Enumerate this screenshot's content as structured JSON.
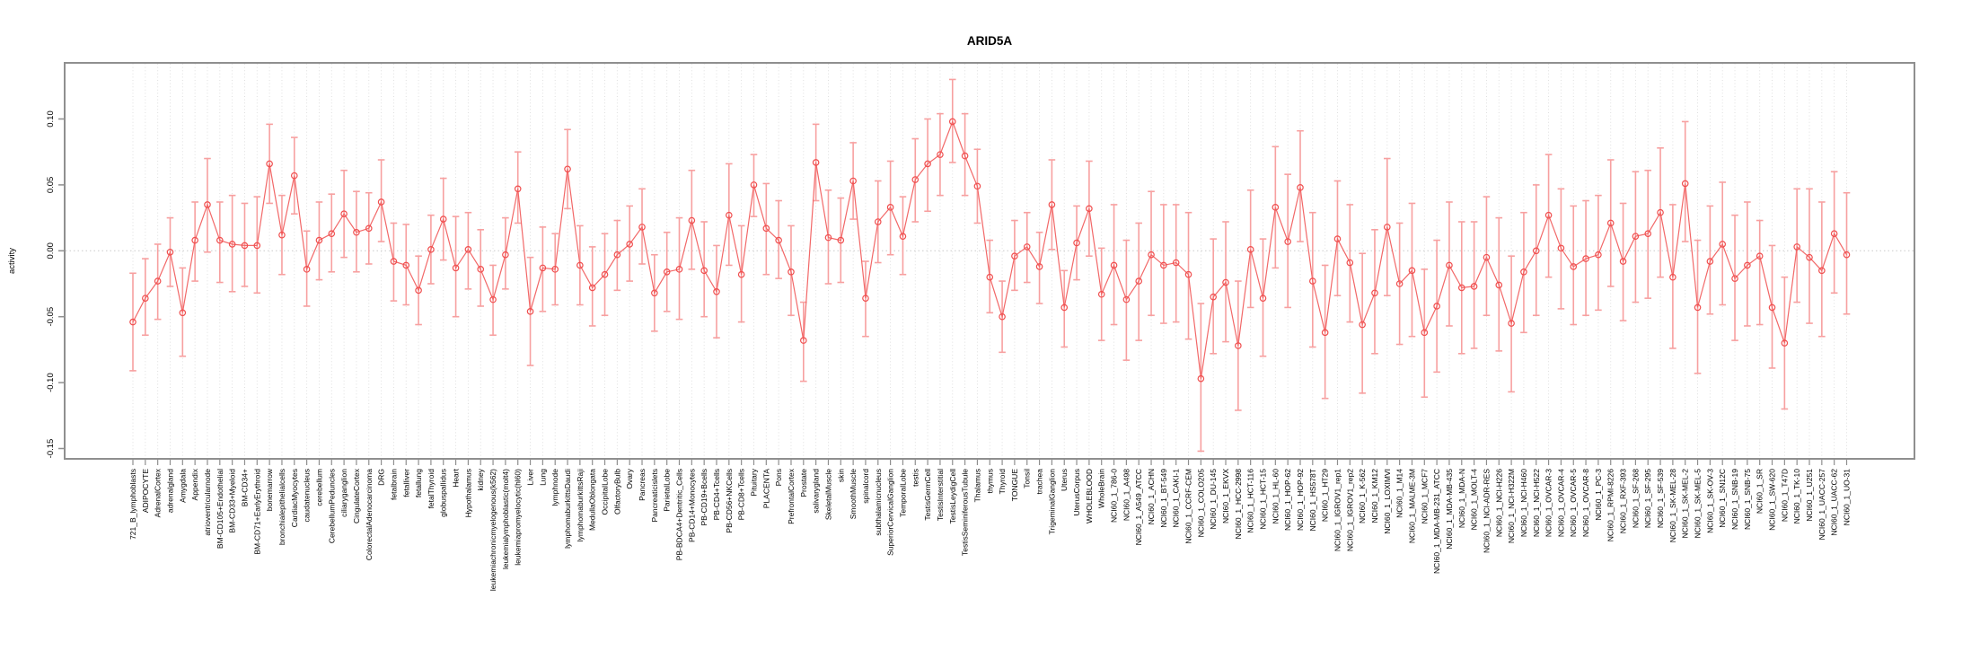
{
  "chart_data": {
    "type": "line",
    "title": "ARID5A",
    "ylabel": "activity",
    "xlabel": "",
    "legend": "none",
    "grid": "vertical dotted per category; dotted horizontal line at 0",
    "ylim": [
      -0.158,
      0.143
    ],
    "yticks": [
      0.1,
      0.05,
      0.0,
      -0.05,
      -0.1,
      -0.15
    ],
    "ytick_labels": [
      "0.10",
      "0.05",
      "0.00",
      "-0.05",
      "-0.10",
      "-0.15"
    ],
    "series_name": "activity with error bars",
    "colors": {
      "point": "#f04f4f",
      "line": "#f26868",
      "error_bar": "#f7a0a0",
      "grid": "#dcdcdc",
      "zero_line": "#c9c9c9",
      "frame": "#8f8f8f",
      "text": "#000000",
      "background": "#ffffff"
    },
    "categories": [
      "721_B_lymphoblasts",
      "ADIPOCYTE",
      "AdrenalCortex",
      "adrenalgland",
      "Amygdala",
      "Appendix",
      "atrioventricularnode",
      "BM-CD105+Endothelial",
      "BM-CD33+Myeloid",
      "BM-CD34+",
      "BM-CD71+EarlyErythroid",
      "bonemarrow",
      "bronchialepithelialcells",
      "CardiacMyocytes",
      "caudatenucleus",
      "cerebellum",
      "CerebellumPeduncles",
      "ciliaryganglion",
      "CingulateCortex",
      "ColorectalAdenocarcinoma",
      "DRG",
      "fetalbrain",
      "fetalliver",
      "fetallung",
      "fetalThyroid",
      "globuspallidus",
      "Heart",
      "Hypothalamus",
      "kidney",
      "leukemiachronicmyelogenous(k562)",
      "leukemialymphoblastic(molt4)",
      "leukemiapromyelocytic(hl60)",
      "Liver",
      "Lung",
      "lymphnode",
      "lymphomaburkittsDaudi",
      "lymphomaburkittsRaji",
      "MedullaOblongata",
      "OccipitalLobe",
      "OlfactoryBulb",
      "Ovary",
      "Pancreas",
      "Pancreaticislets",
      "ParietalLobe",
      "PB-BDCA4+Dentritic_Cells",
      "PB-CD14+Monocytes",
      "PB-CD19+Bcells",
      "PB-CD4+Tcells",
      "PB-CD56+NKCells",
      "PB-CD8+Tcells",
      "Pituitary",
      "PLACENTA",
      "Pons",
      "PrefrontalCortex",
      "Prostate",
      "salivarygland",
      "SkeletalMuscle",
      "skin",
      "SmoothMuscle",
      "spinalcord",
      "subthalamicnucleus",
      "SuperiorCervicalGanglion",
      "TemporalLobe",
      "testis",
      "TestisGermCell",
      "TestisInterstitial",
      "TestisLeydigCell",
      "TestisSeminiferousTubule",
      "Thalamus",
      "thymus",
      "Thyroid",
      "TONGUE",
      "Tonsil",
      "trachea",
      "TrigeminalGanglion",
      "Uterus",
      "UterusCorpus",
      "WHOLEBLOOD",
      "WholeBrain",
      "NCI60_1_786-0",
      "NCI60_1_A498",
      "NCI60_1_A549_ATCC",
      "NCI60_1_ACHN",
      "NCI60_1_BT-549",
      "NCI60_1_CAKI-1",
      "NCI60_1_CCRF-CEM",
      "NCI60_1_COLO205",
      "NCI60_1_DU-145",
      "NCI60_1_EKVX",
      "NCI60_1_HCC-2998",
      "NCI60_1_HCT-116",
      "NCI60_1_HCT-15",
      "NCI60_1_HL-60",
      "NCI60_1_HOP-62",
      "NCI60_1_HOP-92",
      "NCI60_1_HS578T",
      "NCI60_1_HT29",
      "NCI60_1_IGROV1_rep1",
      "NCI60_1_IGROV1_rep2",
      "NCI60_1_K-562",
      "NCI60_1_KM12",
      "NCI60_1_LOXIMVI",
      "NCI60_1_M14",
      "NCI60_1_MALME-3M",
      "NCI60_1_MCF7",
      "NCI60_1_MDA-MB-231_ATCC",
      "NCI60_1_MDA-MB-435",
      "NCI60_1_MDA-N",
      "NCI60_1_MOLT-4",
      "NCI60_1_NCI-ADR-RES",
      "NCI60_1_NCI-H226",
      "NCI60_1_NCI-H322M",
      "NCI60_1_NCI-H460",
      "NCI60_1_NCI-H522",
      "NCI60_1_OVCAR-3",
      "NCI60_1_OVCAR-4",
      "NCI60_1_OVCAR-5",
      "NCI60_1_OVCAR-8",
      "NCI60_1_PC-3",
      "NCI60_1_RPMI-8226",
      "NCI60_1_RXF-393",
      "NCI60_1_SF-268",
      "NCI60_1_SF-295",
      "NCI60_1_SF-539",
      "NCI60_1_SK-MEL-28",
      "NCI60_1_SK-MEL-2",
      "NCI60_1_SK-MEL-5",
      "NCI60_1_SK-OV-3",
      "NCI60_1_SN12C",
      "NCI60_1_SNB-19",
      "NCI60_1_SNB-75",
      "NCI60_1_SR",
      "NCI60_1_SW-620",
      "NCI60_1_T47D",
      "NCI60_1_TK-10",
      "NCI60_1_U251",
      "NCI60_1_UACC-257",
      "NCI60_1_UACC-62",
      "NCI60_1_UO-31"
    ],
    "values": [
      -0.054,
      -0.036,
      -0.023,
      -0.001,
      -0.047,
      0.008,
      0.035,
      0.008,
      0.005,
      0.004,
      0.004,
      0.066,
      0.012,
      0.057,
      -0.014,
      0.008,
      0.013,
      0.028,
      0.014,
      0.017,
      0.037,
      -0.008,
      -0.011,
      -0.03,
      0.001,
      0.024,
      -0.013,
      0.001,
      -0.014,
      -0.037,
      -0.003,
      0.047,
      -0.046,
      -0.013,
      -0.014,
      0.062,
      -0.011,
      -0.028,
      -0.018,
      -0.003,
      0.005,
      0.018,
      -0.032,
      -0.016,
      -0.014,
      0.023,
      -0.015,
      -0.031,
      0.027,
      -0.018,
      0.05,
      0.017,
      0.008,
      -0.016,
      -0.068,
      0.067,
      0.01,
      0.008,
      0.053,
      -0.036,
      0.022,
      0.033,
      0.011,
      0.054,
      0.066,
      0.073,
      0.098,
      0.072,
      0.049,
      -0.02,
      -0.05,
      -0.004,
      0.003,
      -0.012,
      0.035,
      -0.043,
      0.006,
      0.032,
      -0.033,
      -0.011,
      -0.037,
      -0.023,
      -0.003,
      -0.011,
      -0.009,
      -0.018,
      -0.097,
      -0.035,
      -0.024,
      -0.072,
      0.001,
      -0.036,
      0.033,
      0.007,
      0.048,
      -0.023,
      -0.062,
      0.009,
      -0.009,
      -0.056,
      -0.032,
      0.018,
      -0.025,
      -0.015,
      -0.062,
      -0.042,
      -0.011,
      -0.028,
      -0.027,
      -0.005,
      -0.026,
      -0.055,
      -0.016,
      0.0,
      0.027,
      0.002,
      -0.012,
      -0.006,
      -0.003,
      0.021,
      -0.008,
      0.011,
      0.013,
      0.029,
      -0.02,
      0.051,
      -0.043,
      -0.008,
      0.005,
      -0.021,
      -0.011,
      -0.004,
      -0.043,
      -0.07,
      0.003,
      -0.005,
      -0.015,
      0.013,
      -0.003
    ],
    "ci_low": [
      -0.091,
      -0.064,
      -0.052,
      -0.027,
      -0.08,
      -0.023,
      -0.001,
      -0.024,
      -0.031,
      -0.027,
      -0.032,
      0.036,
      -0.018,
      0.028,
      -0.042,
      -0.022,
      -0.016,
      -0.005,
      -0.016,
      -0.01,
      0.007,
      -0.038,
      -0.041,
      -0.056,
      -0.025,
      -0.007,
      -0.05,
      -0.029,
      -0.042,
      -0.064,
      -0.029,
      0.021,
      -0.087,
      -0.046,
      -0.041,
      0.032,
      -0.041,
      -0.057,
      -0.049,
      -0.03,
      -0.023,
      -0.01,
      -0.061,
      -0.046,
      -0.052,
      -0.014,
      -0.05,
      -0.066,
      -0.011,
      -0.054,
      0.026,
      -0.018,
      -0.021,
      -0.049,
      -0.099,
      0.038,
      -0.025,
      -0.024,
      0.024,
      -0.065,
      -0.009,
      -0.003,
      -0.018,
      0.022,
      0.03,
      0.042,
      0.067,
      0.042,
      0.021,
      -0.047,
      -0.077,
      -0.03,
      -0.024,
      -0.04,
      0.001,
      -0.073,
      -0.022,
      -0.004,
      -0.068,
      -0.056,
      -0.083,
      -0.068,
      -0.049,
      -0.055,
      -0.054,
      -0.067,
      -0.152,
      -0.078,
      -0.069,
      -0.121,
      -0.043,
      -0.08,
      -0.013,
      -0.043,
      0.007,
      -0.073,
      -0.112,
      -0.034,
      -0.054,
      -0.108,
      -0.078,
      -0.034,
      -0.071,
      -0.065,
      -0.111,
      -0.092,
      -0.057,
      -0.078,
      -0.074,
      -0.049,
      -0.076,
      -0.107,
      -0.062,
      -0.049,
      -0.02,
      -0.044,
      -0.056,
      -0.049,
      -0.045,
      -0.027,
      -0.053,
      -0.039,
      -0.036,
      -0.02,
      -0.074,
      0.007,
      -0.093,
      -0.048,
      -0.041,
      -0.068,
      -0.057,
      -0.056,
      -0.089,
      -0.12,
      -0.039,
      -0.055,
      -0.065,
      -0.032,
      -0.048
    ],
    "ci_high": [
      -0.017,
      -0.006,
      0.005,
      0.025,
      -0.013,
      0.037,
      0.07,
      0.037,
      0.042,
      0.036,
      0.041,
      0.096,
      0.042,
      0.086,
      0.015,
      0.037,
      0.043,
      0.061,
      0.045,
      0.044,
      0.069,
      0.021,
      0.02,
      -0.004,
      0.027,
      0.055,
      0.026,
      0.029,
      0.016,
      -0.011,
      0.025,
      0.075,
      -0.005,
      0.018,
      0.013,
      0.092,
      0.019,
      0.003,
      0.013,
      0.023,
      0.034,
      0.047,
      -0.003,
      0.014,
      0.025,
      0.061,
      0.022,
      0.004,
      0.066,
      0.019,
      0.073,
      0.051,
      0.038,
      0.019,
      -0.039,
      0.096,
      0.046,
      0.04,
      0.082,
      -0.008,
      0.053,
      0.068,
      0.041,
      0.085,
      0.1,
      0.104,
      0.13,
      0.104,
      0.077,
      0.008,
      -0.023,
      0.023,
      0.029,
      0.014,
      0.069,
      -0.015,
      0.034,
      0.068,
      0.002,
      0.035,
      0.008,
      0.021,
      0.045,
      0.035,
      0.035,
      0.029,
      -0.04,
      0.009,
      0.022,
      -0.023,
      0.046,
      0.009,
      0.079,
      0.058,
      0.091,
      0.029,
      -0.011,
      0.053,
      0.035,
      -0.002,
      0.016,
      0.07,
      0.021,
      0.036,
      -0.014,
      0.008,
      0.037,
      0.022,
      0.022,
      0.041,
      0.025,
      -0.004,
      0.029,
      0.05,
      0.073,
      0.047,
      0.034,
      0.038,
      0.042,
      0.069,
      0.036,
      0.06,
      0.061,
      0.078,
      0.035,
      0.098,
      0.008,
      0.034,
      0.052,
      0.027,
      0.037,
      0.023,
      0.004,
      -0.02,
      0.047,
      0.047,
      0.037,
      0.06,
      0.044
    ]
  }
}
